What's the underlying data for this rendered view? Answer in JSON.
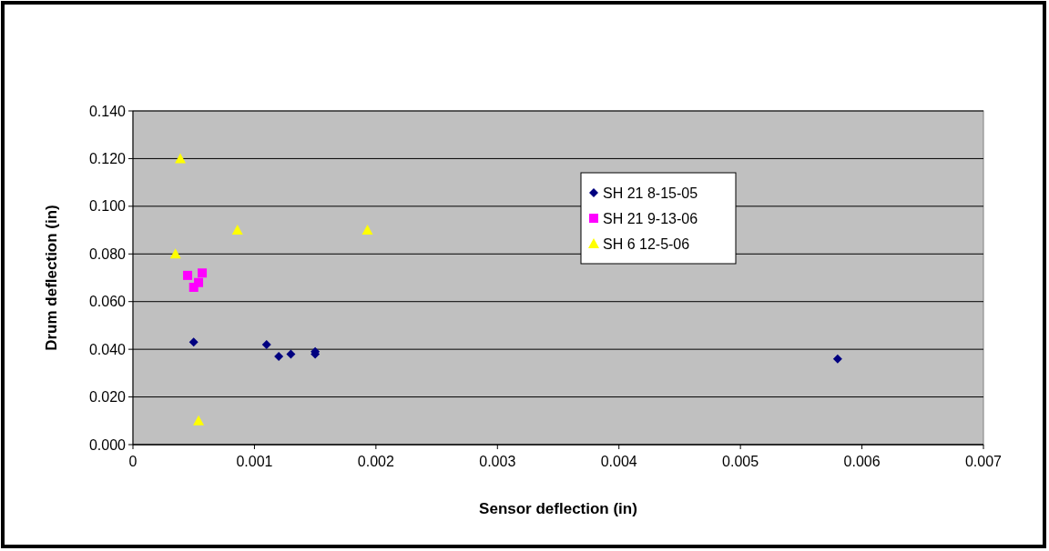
{
  "chart_data": {
    "type": "scatter",
    "xlabel": "Sensor deflection (in)",
    "ylabel": "Drum deflection (in)",
    "xlim": [
      0,
      0.007
    ],
    "xticks": [
      {
        "value": 0,
        "label": "0"
      },
      {
        "value": 0.001,
        "label": "0.001"
      },
      {
        "value": 0.002,
        "label": "0.002"
      },
      {
        "value": 0.003,
        "label": "0.003"
      },
      {
        "value": 0.004,
        "label": "0.004"
      },
      {
        "value": 0.005,
        "label": "0.005"
      },
      {
        "value": 0.006,
        "label": "0.006"
      },
      {
        "value": 0.007,
        "label": "0.007"
      }
    ],
    "ylim": [
      0,
      0.14
    ],
    "yticks": [
      {
        "value": 0,
        "label": "0.000"
      },
      {
        "value": 0.02,
        "label": "0.020"
      },
      {
        "value": 0.04,
        "label": "0.040"
      },
      {
        "value": 0.06,
        "label": "0.060"
      },
      {
        "value": 0.08,
        "label": "0.080"
      },
      {
        "value": 0.1,
        "label": "0.100"
      },
      {
        "value": 0.12,
        "label": "0.120"
      },
      {
        "value": 0.14,
        "label": "0.140"
      }
    ],
    "grid": "y",
    "legend": "top",
    "series": [
      {
        "name": "SH 21 8-15-05",
        "color": "#000080",
        "marker": "diamond",
        "x": [
          0.0005,
          0.0011,
          0.0012,
          0.0013,
          0.0015,
          0.0015,
          0.0058
        ],
        "values": [
          0.043,
          0.042,
          0.037,
          0.038,
          0.039,
          0.038,
          0.036
        ]
      },
      {
        "name": "SH 21 9-13-06",
        "color": "#ff00ff",
        "marker": "square",
        "x": [
          0.00045,
          0.00057,
          0.00054,
          0.0005
        ],
        "values": [
          0.071,
          0.072,
          0.068,
          0.066
        ]
      },
      {
        "name": "SH 6 12-5-06",
        "color": "#ffff00",
        "marker": "triangle",
        "x": [
          0.00039,
          0.00086,
          0.00193,
          0.00035,
          0.00054
        ],
        "values": [
          0.12,
          0.09,
          0.09,
          0.08,
          0.01
        ]
      }
    ]
  }
}
